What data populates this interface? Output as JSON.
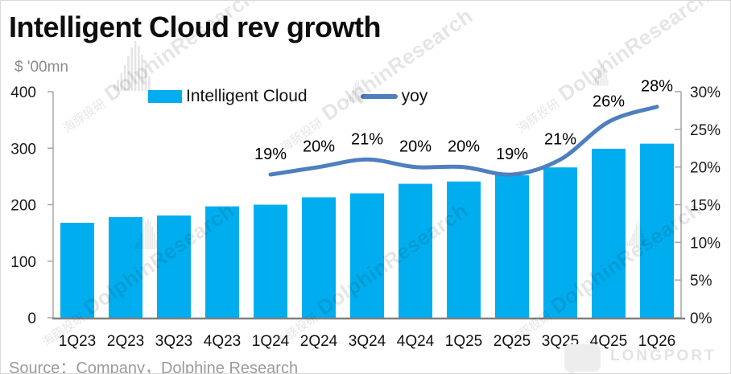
{
  "header": {
    "title": "Intelligent Cloud rev growth",
    "unit_label": "$ '00mn"
  },
  "legend": {
    "bar_label": "Intelligent Cloud",
    "line_label": "yoy"
  },
  "colors": {
    "bar": "#00AEEF",
    "line": "#4E7FBE",
    "axis": "#A6A6A6",
    "baseline": "#808080",
    "label_text": "#000000",
    "watermark": "rgba(0,0,0,0.10)"
  },
  "chart_data": {
    "type": "bar",
    "subtype": "combo-bar-line",
    "title": "Intelligent Cloud rev growth",
    "ylabel": "$ '00mn",
    "categories": [
      "1Q23",
      "2Q23",
      "3Q23",
      "4Q23",
      "1Q24",
      "2Q24",
      "3Q24",
      "4Q24",
      "1Q25",
      "2Q25",
      "3Q25",
      "4Q25",
      "1Q26"
    ],
    "series": [
      {
        "name": "Intelligent Cloud",
        "type": "bar",
        "axis": "left",
        "values": [
          168,
          178,
          181,
          197,
          200,
          213,
          220,
          237,
          241,
          252,
          266,
          299,
          308
        ]
      },
      {
        "name": "yoy",
        "type": "line",
        "axis": "right",
        "values": [
          null,
          null,
          null,
          null,
          19,
          20,
          21,
          20,
          20,
          19,
          21,
          26,
          28
        ],
        "point_labels": [
          "",
          "",
          "",
          "",
          "19%",
          "20%",
          "21%",
          "20%",
          "20%",
          "19%",
          "21%",
          "26%",
          "28%"
        ]
      }
    ],
    "left_axis": {
      "min": 0,
      "max": 400,
      "ticks": [
        0,
        100,
        200,
        300,
        400
      ]
    },
    "right_axis": {
      "min": 0,
      "max": 30,
      "ticks": [
        0,
        5,
        10,
        15,
        20,
        25,
        30
      ],
      "format": "percent"
    },
    "grid": false,
    "legend_position": "top-center"
  },
  "watermark": {
    "cn": "海豚投研",
    "en": "DolphinResearch"
  },
  "footer": {
    "source": "Source：Company，Dolphine Research",
    "brand": "LONGPORT"
  }
}
